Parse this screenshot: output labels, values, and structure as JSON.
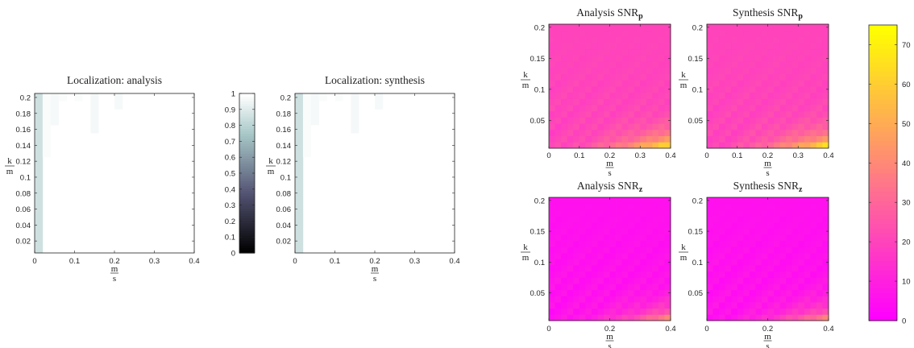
{
  "chart_data": [
    {
      "type": "heatmap",
      "title": "Localization: analysis",
      "xlabel_num": "m",
      "xlabel_den": "s",
      "ylabel_num": "k",
      "ylabel_den": "m",
      "xlim": [
        0,
        0.4
      ],
      "ylim": [
        0.005,
        0.205
      ],
      "xticks": [
        "0",
        "0.1",
        "0.2",
        "0.3",
        "0.4"
      ],
      "yticks": [
        "0.02",
        "0.04",
        "0.06",
        "0.08",
        "0.1",
        "0.12",
        "0.14",
        "0.16",
        "0.18",
        "0.2"
      ],
      "colormap": "bone",
      "clim": [
        0,
        1
      ],
      "nx": 20,
      "ny": 20,
      "cells": [
        {
          "ix": 0,
          "iy0": 0,
          "iy1": 19,
          "v": 0.86
        },
        {
          "ix": 1,
          "iy0": 12,
          "iy1": 19,
          "v": 0.985
        },
        {
          "ix": 2,
          "iy0": 16,
          "iy1": 19,
          "v": 0.975
        },
        {
          "ix": 3,
          "iy0": 19,
          "iy1": 19,
          "v": 0.985
        },
        {
          "ix": 5,
          "iy0": 19,
          "iy1": 19,
          "v": 0.985
        },
        {
          "ix": 7,
          "iy0": 15,
          "iy1": 19,
          "v": 0.97
        },
        {
          "ix": 10,
          "iy0": 18,
          "iy1": 19,
          "v": 0.975
        }
      ]
    },
    {
      "type": "heatmap",
      "title": "Localization: synthesis",
      "xlabel_num": "m",
      "xlabel_den": "s",
      "ylabel_num": "k",
      "ylabel_den": "m",
      "xlim": [
        0,
        0.4
      ],
      "ylim": [
        0.005,
        0.205
      ],
      "xticks": [
        "0",
        "0.1",
        "0.2",
        "0.3",
        "0.4"
      ],
      "yticks": [
        "0.02",
        "0.04",
        "0.06",
        "0.08",
        "0.1",
        "0.12",
        "0.14",
        "0.16",
        "0.18",
        "0.2"
      ],
      "colormap": "bone",
      "clim": [
        0,
        1
      ],
      "nx": 20,
      "ny": 20,
      "cells": [
        {
          "ix": 0,
          "iy0": 0,
          "iy1": 19,
          "v": 0.86
        },
        {
          "ix": 1,
          "iy0": 12,
          "iy1": 19,
          "v": 0.985
        },
        {
          "ix": 2,
          "iy0": 16,
          "iy1": 19,
          "v": 0.975
        },
        {
          "ix": 3,
          "iy0": 19,
          "iy1": 19,
          "v": 0.985
        },
        {
          "ix": 5,
          "iy0": 19,
          "iy1": 19,
          "v": 0.985
        },
        {
          "ix": 7,
          "iy0": 15,
          "iy1": 19,
          "v": 0.97
        },
        {
          "ix": 10,
          "iy0": 18,
          "iy1": 19,
          "v": 0.975
        }
      ]
    },
    {
      "type": "colorbar",
      "colormap": "bone",
      "ticks": [
        "0",
        "0.1",
        "0.2",
        "0.3",
        "0.4",
        "0.5",
        "0.6",
        "0.7",
        "0.8",
        "0.9",
        "1"
      ],
      "clim": [
        0,
        1
      ]
    },
    {
      "type": "heatmap",
      "title": "Analysis SNR",
      "title_sub": "p",
      "xlabel_num": "m",
      "xlabel_den": "s",
      "ylabel_num": "k",
      "ylabel_den": "m",
      "xlim": [
        0,
        0.4
      ],
      "ylim": [
        0.005,
        0.205
      ],
      "xticks": [
        "0",
        "0.1",
        "0.2",
        "0.3",
        "0.4"
      ],
      "yticks": [
        "0.05",
        "0.1",
        "0.15",
        "0.2"
      ],
      "colormap": "spring",
      "clim": [
        0,
        75
      ],
      "nx": 20,
      "ny": 20,
      "value_model": {
        "base": 20,
        "gain": 52,
        "amp": 1.6
      }
    },
    {
      "type": "heatmap",
      "title": "Synthesis SNR",
      "title_sub": "p",
      "xlabel_num": "m",
      "xlabel_den": "s",
      "ylabel_num": "k",
      "ylabel_den": "m",
      "xlim": [
        0,
        0.4
      ],
      "ylim": [
        0.005,
        0.205
      ],
      "xticks": [
        "0",
        "0.1",
        "0.2",
        "0.3",
        "0.4"
      ],
      "yticks": [
        "0.05",
        "0.1",
        "0.15",
        "0.2"
      ],
      "colormap": "spring",
      "clim": [
        0,
        75
      ],
      "nx": 20,
      "ny": 20,
      "value_model": {
        "base": 20,
        "gain": 52,
        "amp": 1.6
      }
    },
    {
      "type": "heatmap",
      "title": "Analysis SNR",
      "title_sub": "z",
      "xlabel_num": "m",
      "xlabel_den": "s",
      "ylabel_num": "k",
      "ylabel_den": "m",
      "xlim": [
        0,
        0.4
      ],
      "ylim": [
        0.005,
        0.205
      ],
      "xticks": [
        "0",
        "0.2",
        "0.4"
      ],
      "yticks": [
        "0.05",
        "0.1",
        "0.15",
        "0.2"
      ],
      "colormap": "spring",
      "clim": [
        0,
        75
      ],
      "nx": 20,
      "ny": 20,
      "value_model": {
        "base": 5,
        "gain": 40,
        "amp": 1.6
      }
    },
    {
      "type": "heatmap",
      "title": "Synthesis SNR",
      "title_sub": "z",
      "xlabel_num": "m",
      "xlabel_den": "s",
      "ylabel_num": "k",
      "ylabel_den": "m",
      "xlim": [
        0,
        0.4
      ],
      "ylim": [
        0.005,
        0.205
      ],
      "xticks": [
        "0",
        "0.2",
        "0.4"
      ],
      "yticks": [
        "0.05",
        "0.1",
        "0.15",
        "0.2"
      ],
      "colormap": "spring",
      "clim": [
        0,
        75
      ],
      "nx": 20,
      "ny": 20,
      "value_model": {
        "base": 5,
        "gain": 40,
        "amp": 1.6
      }
    },
    {
      "type": "colorbar",
      "colormap": "spring",
      "ticks": [
        "0",
        "10",
        "20",
        "30",
        "40",
        "50",
        "60",
        "70"
      ],
      "clim": [
        0,
        75
      ]
    }
  ]
}
